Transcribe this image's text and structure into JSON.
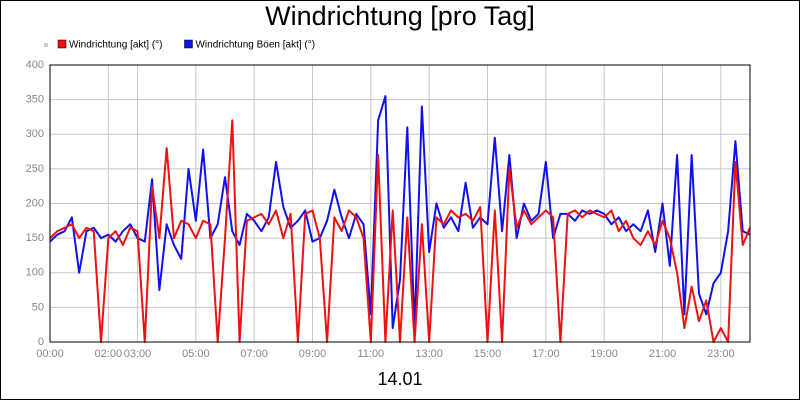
{
  "chart_data": {
    "type": "line",
    "title": "Windrichtung [pro Tag]",
    "x_label": "14.01",
    "xlim": [
      0,
      24
    ],
    "ylim": [
      0,
      400
    ],
    "grid": true,
    "yticks": [
      0,
      50,
      100,
      150,
      200,
      250,
      300,
      350,
      400
    ],
    "xticks": [
      {
        "value": 0,
        "label": "00:00"
      },
      {
        "value": 2,
        "label": "02:00"
      },
      {
        "value": 3,
        "label": "03:00"
      },
      {
        "value": 5,
        "label": "05:00"
      },
      {
        "value": 7,
        "label": "07:00"
      },
      {
        "value": 9,
        "label": "09:00"
      },
      {
        "value": 11,
        "label": "11:00"
      },
      {
        "value": 13,
        "label": "13:00"
      },
      {
        "value": 15,
        "label": "15:00"
      },
      {
        "value": 17,
        "label": "17:00"
      },
      {
        "value": 19,
        "label": "19:00"
      },
      {
        "value": 21,
        "label": "21:00"
      },
      {
        "value": 23,
        "label": "23:00"
      }
    ],
    "x": [
      0,
      0.25,
      0.5,
      0.75,
      1,
      1.25,
      1.5,
      1.75,
      2,
      2.25,
      2.5,
      2.75,
      3,
      3.25,
      3.5,
      3.75,
      4,
      4.25,
      4.5,
      4.75,
      5,
      5.25,
      5.5,
      5.75,
      6,
      6.25,
      6.5,
      6.75,
      7,
      7.25,
      7.5,
      7.75,
      8,
      8.25,
      8.5,
      8.75,
      9,
      9.25,
      9.5,
      9.75,
      10,
      10.25,
      10.5,
      10.75,
      11,
      11.25,
      11.5,
      11.75,
      12,
      12.25,
      12.5,
      12.75,
      13,
      13.25,
      13.5,
      13.75,
      14,
      14.25,
      14.5,
      14.75,
      15,
      15.25,
      15.5,
      15.75,
      16,
      16.25,
      16.5,
      16.75,
      17,
      17.25,
      17.5,
      17.75,
      18,
      18.25,
      18.5,
      18.75,
      19,
      19.25,
      19.5,
      19.75,
      20,
      20.25,
      20.5,
      20.75,
      21,
      21.25,
      21.5,
      21.75,
      22,
      22.25,
      22.5,
      22.75,
      23,
      23.25,
      23.5,
      23.75,
      24
    ],
    "series": [
      {
        "name": "Windrichtung [akt] (°)",
        "color": "#ee1111",
        "values": [
          150,
          160,
          165,
          170,
          150,
          165,
          160,
          0,
          150,
          160,
          140,
          165,
          160,
          0,
          225,
          150,
          280,
          150,
          175,
          170,
          150,
          175,
          170,
          0,
          150,
          320,
          0,
          175,
          180,
          185,
          170,
          190,
          150,
          185,
          0,
          185,
          190,
          150,
          0,
          180,
          160,
          190,
          180,
          150,
          0,
          270,
          0,
          190,
          0,
          180,
          0,
          170,
          0,
          180,
          170,
          190,
          180,
          185,
          175,
          195,
          0,
          190,
          0,
          250,
          165,
          190,
          170,
          180,
          190,
          180,
          0,
          185,
          190,
          180,
          190,
          185,
          180,
          190,
          160,
          175,
          150,
          140,
          160,
          140,
          175,
          150,
          100,
          20,
          80,
          30,
          60,
          0,
          20,
          0,
          260,
          140,
          165
        ]
      },
      {
        "name": "Windrichtung Böen [akt] (°)",
        "color": "#1111ee",
        "values": [
          145,
          155,
          160,
          180,
          100,
          160,
          165,
          150,
          155,
          145,
          160,
          170,
          150,
          145,
          235,
          75,
          170,
          140,
          120,
          250,
          175,
          278,
          150,
          170,
          238,
          160,
          140,
          185,
          175,
          160,
          180,
          260,
          195,
          165,
          175,
          190,
          145,
          150,
          175,
          220,
          180,
          150,
          185,
          170,
          40,
          320,
          355,
          20,
          90,
          310,
          20,
          340,
          130,
          200,
          165,
          180,
          160,
          230,
          165,
          180,
          170,
          295,
          160,
          270,
          150,
          200,
          175,
          185,
          260,
          150,
          185,
          185,
          175,
          190,
          185,
          190,
          185,
          170,
          180,
          160,
          170,
          160,
          190,
          130,
          200,
          110,
          270,
          40,
          270,
          70,
          40,
          85,
          100,
          160,
          290,
          160,
          155
        ]
      }
    ]
  }
}
